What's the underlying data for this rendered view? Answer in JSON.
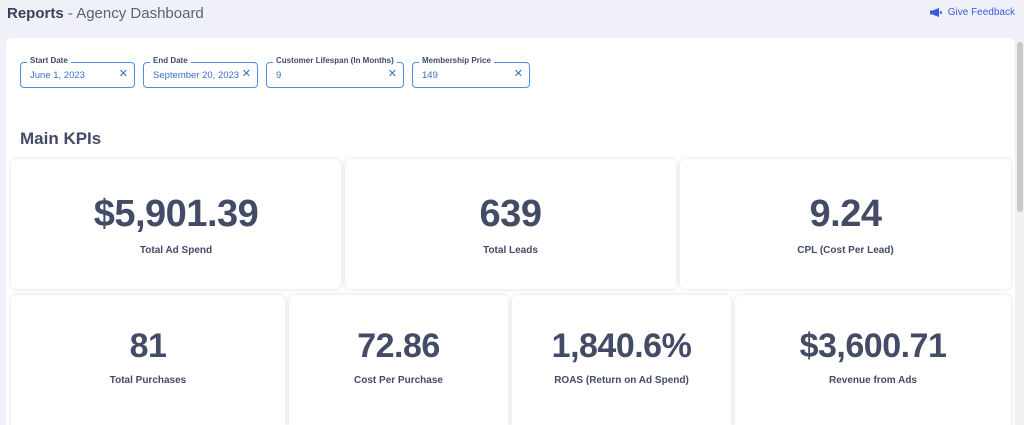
{
  "header": {
    "title_strong": "Reports",
    "title_sub": "- Agency Dashboard",
    "feedback_label": "Give Feedback",
    "feedback_icon": "megaphone-icon",
    "accent_color": "#3b5bdb"
  },
  "filters": [
    {
      "label": "Start Date",
      "value": "June 1, 2023"
    },
    {
      "label": "End Date",
      "value": "September 20, 2023"
    },
    {
      "label": "Customer Lifespan (In Months)",
      "value": "9"
    },
    {
      "label": "Membership Price",
      "value": "149"
    }
  ],
  "clear_glyph": "✕",
  "section": {
    "title": "Main KPIs"
  },
  "kpis_row1": [
    {
      "value": "$5,901.39",
      "label": "Total Ad Spend"
    },
    {
      "value": "639",
      "label": "Total Leads"
    },
    {
      "value": "9.24",
      "label": "CPL (Cost Per Lead)"
    }
  ],
  "kpis_row2": [
    {
      "value": "81",
      "label": "Total Purchases"
    },
    {
      "value": "72.86",
      "label": "Cost Per Purchase"
    },
    {
      "value": "1,840.6%",
      "label": "ROAS (Return on Ad Spend)"
    },
    {
      "value": "$3,600.71",
      "label": "Revenue from Ads"
    }
  ]
}
